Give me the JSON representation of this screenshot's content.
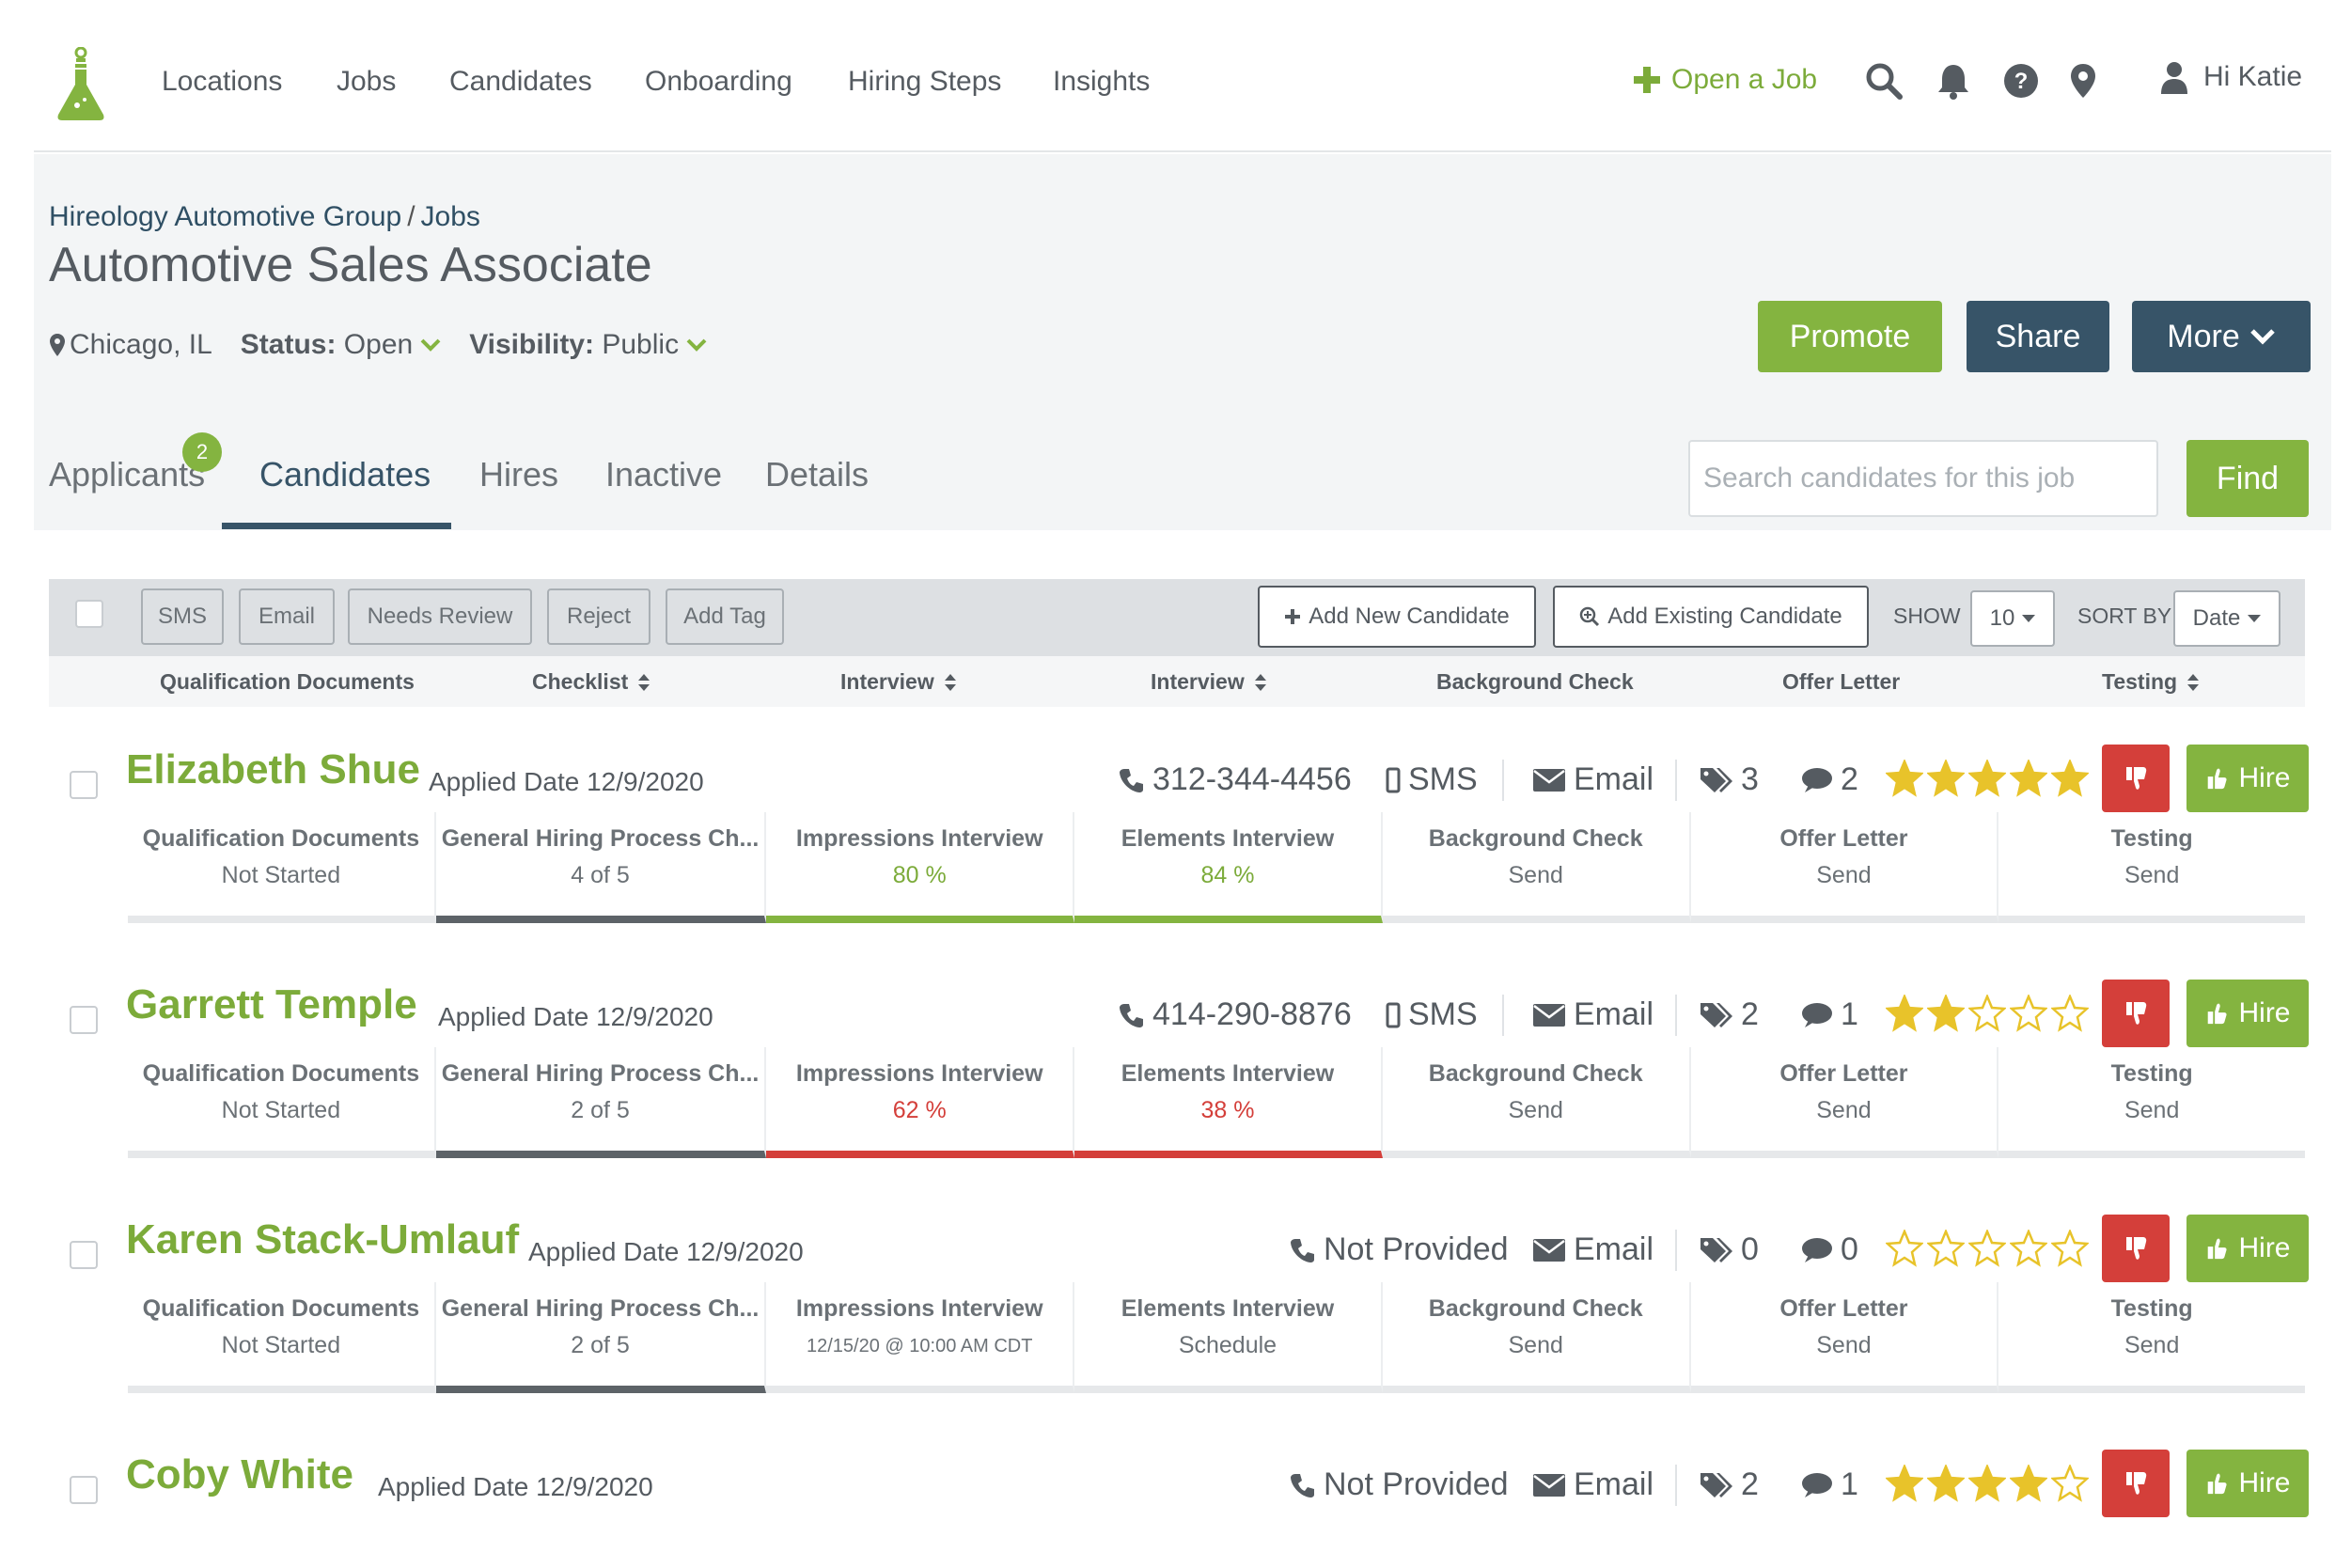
{
  "nav": {
    "links": [
      "Locations",
      "Jobs",
      "Candidates",
      "Onboarding",
      "Hiring Steps",
      "Insights"
    ],
    "open_job": "Open a Job",
    "greeting": "Hi Katie"
  },
  "job": {
    "breadcrumb": [
      "Hireology Automotive Group",
      "Jobs"
    ],
    "title": "Automotive Sales Associate",
    "location": "Chicago, IL",
    "status_label": "Status:",
    "status_value": "Open",
    "visibility_label": "Visibility:",
    "visibility_value": "Public",
    "buttons": {
      "promote": "Promote",
      "share": "Share",
      "more": "More"
    }
  },
  "tabs": [
    {
      "label": "Applicants",
      "badge": "2"
    },
    {
      "label": "Candidates"
    },
    {
      "label": "Hires"
    },
    {
      "label": "Inactive"
    },
    {
      "label": "Details"
    }
  ],
  "search": {
    "placeholder": "Search candidates for this job",
    "button": "Find"
  },
  "toolbar": {
    "sms": "SMS",
    "email": "Email",
    "needs_review": "Needs Review",
    "reject": "Reject",
    "add_tag": "Add Tag",
    "add_new": "Add New Candidate",
    "add_existing": "Add Existing Candidate",
    "show_label": "SHOW",
    "show_value": "10",
    "sort_label": "SORT BY",
    "sort_value": "Date"
  },
  "columns": [
    "Qualification Documents",
    "Checklist",
    "Interview",
    "Interview",
    "Background Check",
    "Offer Letter",
    "Testing"
  ],
  "candidates": [
    {
      "name": "Elizabeth Shue",
      "applied": "Applied Date 12/9/2020",
      "phone": "312-344-4456",
      "sms": "SMS",
      "email": "Email",
      "tags": "3",
      "comments": "2",
      "rating": 5,
      "hire": "Hire",
      "cells": [
        {
          "label": "Qualification Documents",
          "value": "Not Started"
        },
        {
          "label": "General Hiring Process Ch...",
          "value": "4 of 5"
        },
        {
          "label": "Impressions Interview",
          "value": "80 %"
        },
        {
          "label": "Elements Interview",
          "value": "84 %"
        },
        {
          "label": "Background Check",
          "value": "Send"
        },
        {
          "label": "Offer Letter",
          "value": "Send"
        },
        {
          "label": "Testing",
          "value": "Send"
        }
      ]
    },
    {
      "name": "Garrett Temple",
      "applied": "Applied Date 12/9/2020",
      "phone": "414-290-8876",
      "sms": "SMS",
      "email": "Email",
      "tags": "2",
      "comments": "1",
      "rating": 2,
      "hire": "Hire",
      "cells": [
        {
          "label": "Qualification Documents",
          "value": "Not Started"
        },
        {
          "label": "General Hiring Process Ch...",
          "value": "2 of 5"
        },
        {
          "label": "Impressions Interview",
          "value": "62 %"
        },
        {
          "label": "Elements Interview",
          "value": "38 %"
        },
        {
          "label": "Background Check",
          "value": "Send"
        },
        {
          "label": "Offer Letter",
          "value": "Send"
        },
        {
          "label": "Testing",
          "value": "Send"
        }
      ]
    },
    {
      "name": "Karen Stack-Umlauf",
      "applied": "Applied Date 12/9/2020",
      "phone": "Not Provided",
      "email": "Email",
      "tags": "0",
      "comments": "0",
      "rating": 0,
      "hire": "Hire",
      "cells": [
        {
          "label": "Qualification Documents",
          "value": "Not Started"
        },
        {
          "label": "General Hiring Process Ch...",
          "value": "2 of 5"
        },
        {
          "label": "Impressions Interview",
          "value": "12/15/20 @ 10:00 AM CDT"
        },
        {
          "label": "Elements Interview",
          "value": "Schedule"
        },
        {
          "label": "Background Check",
          "value": "Send"
        },
        {
          "label": "Offer Letter",
          "value": "Send"
        },
        {
          "label": "Testing",
          "value": "Send"
        }
      ]
    },
    {
      "name": "Coby White",
      "applied": "Applied Date 12/9/2020",
      "phone": "Not Provided",
      "email": "Email",
      "tags": "2",
      "comments": "1",
      "rating": 4,
      "hire": "Hire"
    }
  ],
  "colors": {
    "brand_green": "#84b440",
    "navy": "#375468",
    "danger": "#d43f3a"
  }
}
